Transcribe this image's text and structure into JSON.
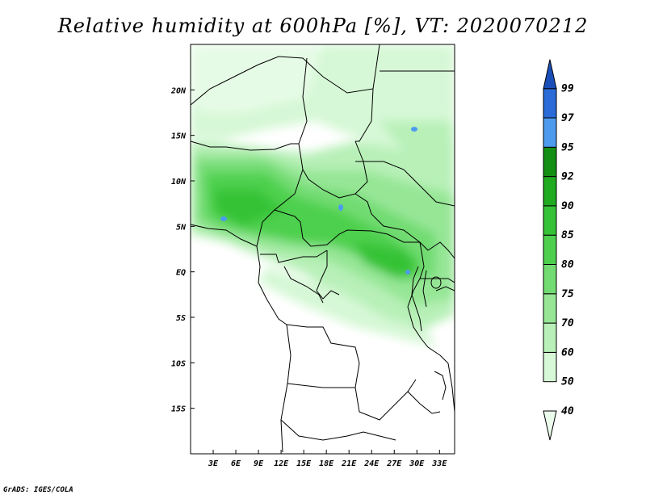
{
  "title": "Relative humidity at 600hPa [%], VT: 2020070212",
  "footer": "GrADS: IGES/COLA",
  "map": {
    "lon_range": [
      0,
      35
    ],
    "lat_range": [
      -20,
      25
    ],
    "lon_ticks": [
      "3E",
      "6E",
      "9E",
      "12E",
      "15E",
      "18E",
      "21E",
      "24E",
      "27E",
      "30E",
      "33E"
    ],
    "lat_ticks": [
      "20N",
      "15N",
      "10N",
      "5N",
      "EQ",
      "5S",
      "10S",
      "15S"
    ]
  },
  "colorbar": {
    "labels": [
      "40",
      "50",
      "60",
      "70",
      "75",
      "80",
      "85",
      "90",
      "92",
      "95",
      "97",
      "99"
    ],
    "colors": [
      "#ecfcec",
      "#d6f8d6",
      "#b8f0b8",
      "#96e696",
      "#72dc72",
      "#4ed04e",
      "#36c236",
      "#20aa20",
      "#138f13",
      "#4d9bef",
      "#2a6bd8",
      "#1a4fb8"
    ]
  }
}
